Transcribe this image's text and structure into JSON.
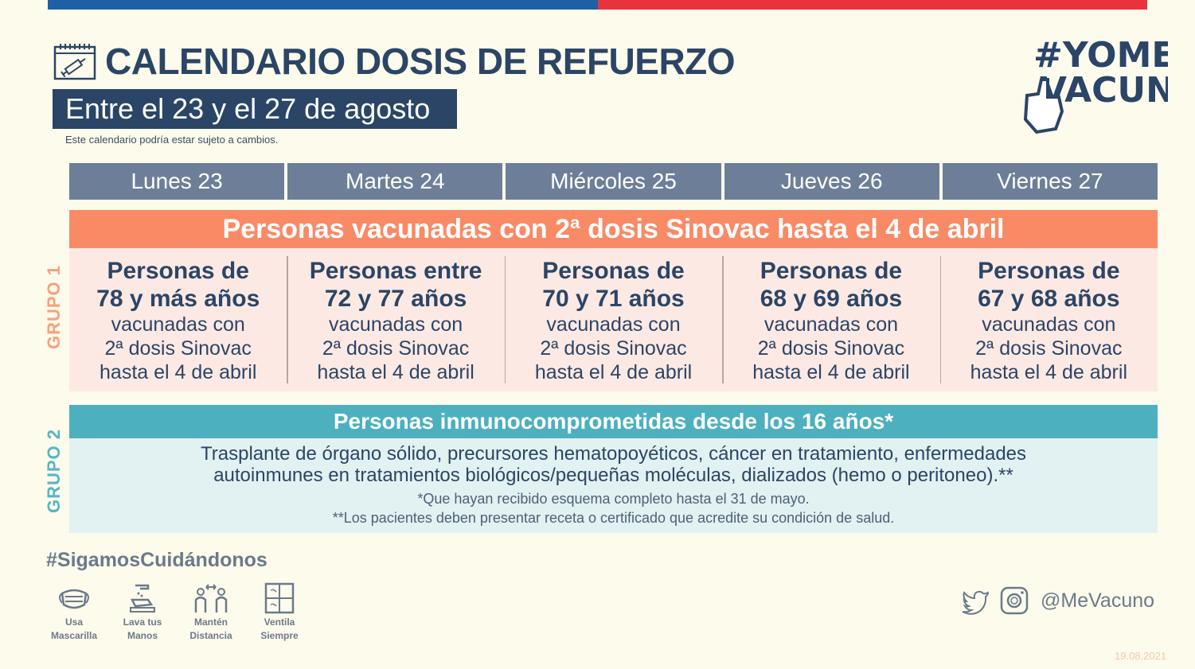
{
  "header": {
    "title": "CALENDARIO DOSIS DE REFUERZO",
    "date_range": "Entre el 23 y el 27 de agosto",
    "note": "Este calendario podría estar sujeto a cambios.",
    "logo_text": "#YOMEVACUNO"
  },
  "days": [
    "Lunes 23",
    "Martes 24",
    "Miércoles 25",
    "Jueves 26",
    "Viernes 27"
  ],
  "group1": {
    "label": "GRUPO 1",
    "header": "Personas vacunadas con 2ª dosis Sinovac hasta el 4 de abril",
    "columns": [
      {
        "bold1": "Personas de",
        "bold2": "78 y más años",
        "line1": "vacunadas con",
        "line2": "2ª dosis Sinovac",
        "line3": "hasta el 4 de abril"
      },
      {
        "bold1": "Personas entre",
        "bold2": "72 y 77 años",
        "line1": "vacunadas con",
        "line2": "2ª dosis Sinovac",
        "line3": "hasta el 4 de abril"
      },
      {
        "bold1": "Personas de",
        "bold2": "70 y 71 años",
        "line1": "vacunadas con",
        "line2": "2ª dosis Sinovac",
        "line3": "hasta el 4 de abril"
      },
      {
        "bold1": "Personas de",
        "bold2": "68 y 69 años",
        "line1": "vacunadas con",
        "line2": "2ª dosis Sinovac",
        "line3": "hasta el 4 de abril"
      },
      {
        "bold1": "Personas de",
        "bold2": "67 y 68 años",
        "line1": "vacunadas con",
        "line2": "2ª dosis Sinovac",
        "line3": "hasta el 4 de abril"
      }
    ]
  },
  "group2": {
    "label": "GRUPO 2",
    "header": "Personas inmunocomprometidas desde los 16 años*",
    "line1": "Trasplante de órgano sólido, precursores hematopoyéticos, cáncer en tratamiento, enfermedades",
    "line2": "autoinmunes en tratamientos biológicos/pequeñas moléculas, dializados (hemo o peritoneo).**",
    "note1": "*Que hayan recibido esquema completo hasta el 31 de mayo.",
    "note2": "**Los pacientes deben presentar receta o certificado que acredite su condición de salud."
  },
  "footer": {
    "hashtag": "#SigamosCuidándonos",
    "tips": [
      {
        "line1": "Usa",
        "line2": "Mascarilla",
        "icon": "mask-icon"
      },
      {
        "line1": "Lava tus",
        "line2": "Manos",
        "icon": "handwash-icon"
      },
      {
        "line1": "Mantén",
        "line2": "Distancia",
        "icon": "distance-icon"
      },
      {
        "line1": "Ventila",
        "line2": "Siempre",
        "icon": "window-icon"
      }
    ],
    "handle": "@MeVacuno",
    "date": "19.08.2021"
  },
  "colors": {
    "navy": "#2b4566",
    "day_header": "#6d7f98",
    "group1": "#f98a66",
    "group1_bg": "#fde9e4",
    "group2": "#4cb0bf",
    "group2_bg": "#e2f1f1",
    "top_blue": "#1f5fa8",
    "top_red": "#e8323c"
  }
}
